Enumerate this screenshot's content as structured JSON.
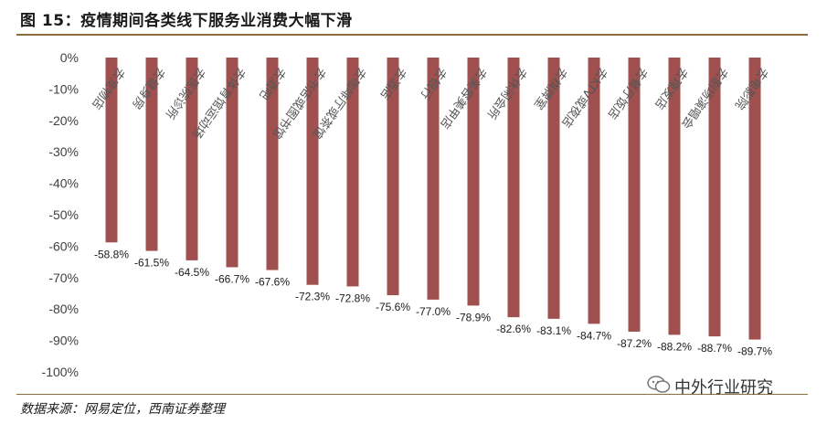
{
  "header": {
    "title": "图 15：疫情期间各类线下服务业消费大幅下滑"
  },
  "footer": {
    "source": "数据来源：网易定位，西南证券整理",
    "watermark": "中外行业研究"
  },
  "chart_data": {
    "type": "bar",
    "categories": [
      "去宠物店",
      "去健身房",
      "去医院诊所",
      "去体育馆运动场",
      "去酒吧",
      "去书店或图书馆",
      "去咖啡厅或茶馆",
      "去酒店",
      "去银行",
      "去美容美甲店",
      "去休闲会所",
      "去棋牌室",
      "去KTV或夜店",
      "去餐厅饭店",
      "去理发店",
      "去剧场演唱会",
      "去电影院"
    ],
    "values": [
      -58.8,
      -61.5,
      -64.5,
      -66.7,
      -67.6,
      -72.3,
      -72.8,
      -75.6,
      -77.0,
      -78.9,
      -82.6,
      -83.1,
      -84.7,
      -87.2,
      -88.2,
      -88.7,
      -89.7
    ],
    "data_labels": [
      "-58.8%",
      "-61.5%",
      "-64.5%",
      "-66.7%",
      "-67.6%",
      "-72.3%",
      "-72.8%",
      "-75.6%",
      "-77.0%",
      "-78.9%",
      "-82.6%",
      "-83.1%",
      "-84.7%",
      "-87.2%",
      "-88.2%",
      "-88.7%",
      "-89.7%"
    ],
    "ylim": [
      -100,
      0
    ],
    "y_ticks": [
      "0%",
      "-10%",
      "-20%",
      "-30%",
      "-40%",
      "-50%",
      "-60%",
      "-70%",
      "-80%",
      "-90%",
      "-100%"
    ],
    "y_tick_values": [
      0,
      -10,
      -20,
      -30,
      -40,
      -50,
      -60,
      -70,
      -80,
      -90,
      -100
    ],
    "bar_color": "#a0504f",
    "grid": false,
    "legend": "none"
  }
}
